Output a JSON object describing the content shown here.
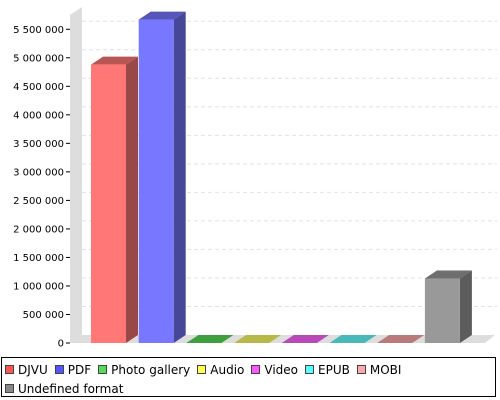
{
  "chart_data": {
    "type": "bar",
    "title": "",
    "xlabel": "",
    "ylabel": "",
    "ylim": [
      0,
      5750000
    ],
    "yticks": [
      0,
      500000,
      1000000,
      1500000,
      2000000,
      2500000,
      3000000,
      3500000,
      4000000,
      4500000,
      5000000,
      5500000
    ],
    "ytick_labels": [
      "0",
      "500 000",
      "1 000 000",
      "1 500 000",
      "2 000 000",
      "2 500 000",
      "3 000 000",
      "3 500 000",
      "4 000 000",
      "4 500 000",
      "5 000 000",
      "5 500 000"
    ],
    "grid": true,
    "style": "3d",
    "legend_position": "bottom",
    "categories": [
      "DJVU",
      "PDF",
      "Photo gallery",
      "Audio",
      "Video",
      "EPUB",
      "MOBI",
      "Undefined format"
    ],
    "values": [
      4880000,
      5670000,
      0,
      0,
      0,
      0,
      0,
      1130000
    ],
    "colors": [
      "#ff7777",
      "#7777ff",
      "#55dd55",
      "#ffff66",
      "#ff66ff",
      "#66ffff",
      "#ffaaaa",
      "#999999"
    ]
  },
  "legend": {
    "items": [
      {
        "label": "DJVU",
        "color": "#ff5555"
      },
      {
        "label": "PDF",
        "color": "#5555ff"
      },
      {
        "label": "Photo gallery",
        "color": "#55dd55"
      },
      {
        "label": "Audio",
        "color": "#ffff55"
      },
      {
        "label": "Video",
        "color": "#ff55ff"
      },
      {
        "label": "EPUB",
        "color": "#55ffff"
      },
      {
        "label": "MOBI",
        "color": "#ffaaaa"
      },
      {
        "label": "Undefined format",
        "color": "#888888"
      }
    ]
  }
}
